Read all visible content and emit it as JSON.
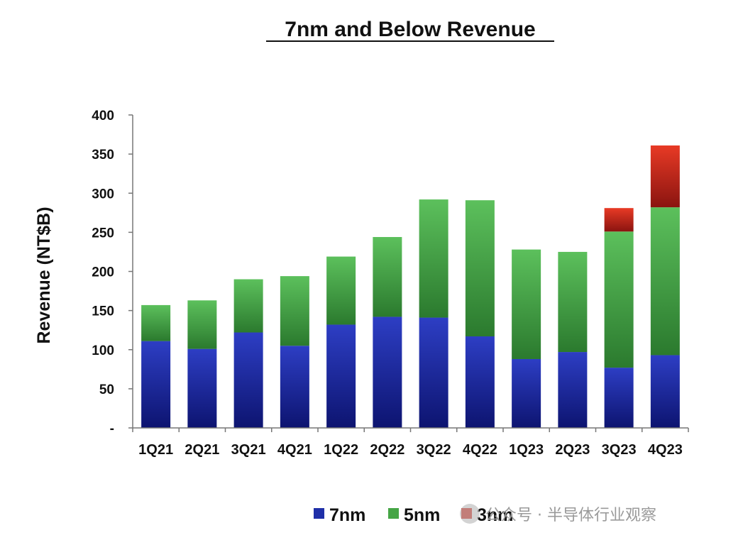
{
  "chart_data": {
    "type": "bar",
    "stacked": true,
    "title": "7nm and Below Revenue",
    "xlabel": "",
    "ylabel": "Revenue (NT$B)",
    "categories": [
      "1Q21",
      "2Q21",
      "3Q21",
      "4Q21",
      "1Q22",
      "2Q22",
      "3Q22",
      "4Q22",
      "1Q23",
      "2Q23",
      "3Q23",
      "4Q23"
    ],
    "series": [
      {
        "name": "7nm",
        "color": "#1f2fa8",
        "values": [
          111,
          101,
          122,
          105,
          132,
          142,
          141,
          117,
          88,
          97,
          77,
          93
        ]
      },
      {
        "name": "5nm",
        "color": "#45a545",
        "values": [
          46,
          62,
          68,
          89,
          87,
          102,
          151,
          174,
          140,
          128,
          174,
          189
        ]
      },
      {
        "name": "3nm",
        "color": "#d42b1e",
        "values": [
          0,
          0,
          0,
          0,
          0,
          0,
          0,
          0,
          0,
          0,
          30,
          79
        ]
      }
    ],
    "ylim": [
      0,
      400
    ],
    "yticks": [
      0,
      50,
      100,
      150,
      200,
      250,
      300,
      350,
      400
    ],
    "ytick_labels": [
      "-",
      "50",
      "100",
      "150",
      "200",
      "250",
      "300",
      "350",
      "400"
    ],
    "grid": false,
    "legend_position": "bottom-right"
  },
  "watermark": {
    "text": "公众号 · 半导体行业观察"
  }
}
